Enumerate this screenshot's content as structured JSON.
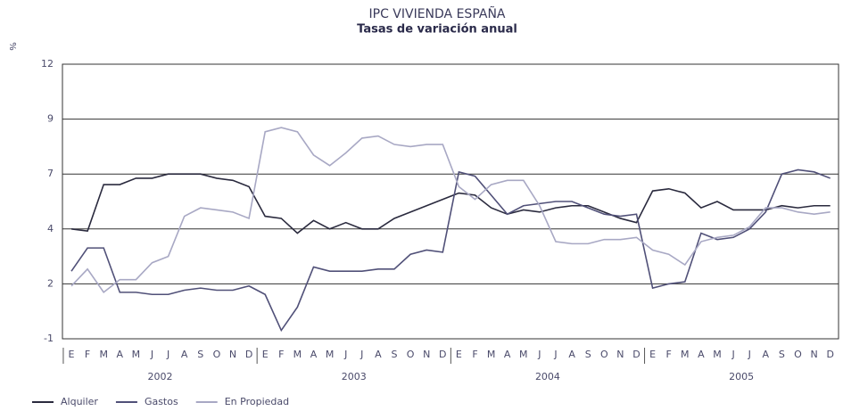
{
  "chart_data": {
    "type": "line",
    "title": "IPC VIVIENDA ESPAÑA",
    "subtitle": "Tasas de variación anual",
    "y_label": "%",
    "categories": [
      "E",
      "F",
      "M",
      "A",
      "M",
      "J",
      "J",
      "A",
      "S",
      "O",
      "N",
      "D",
      "E",
      "F",
      "M",
      "A",
      "M",
      "J",
      "J",
      "A",
      "S",
      "O",
      "N",
      "D",
      "E",
      "F",
      "M",
      "A",
      "M",
      "J",
      "J",
      "A",
      "S",
      "O",
      "N",
      "D",
      "E",
      "F",
      "M",
      "A",
      "M",
      "J",
      "J",
      "A",
      "S",
      "O",
      "N",
      "D"
    ],
    "years": [
      "2002",
      "2003",
      "2004",
      "2005"
    ],
    "series": [
      {
        "name": "Alquiler",
        "color": "#2a2a3e",
        "values": [
          4.2,
          4.1,
          6.3,
          6.3,
          6.6,
          6.6,
          6.8,
          6.8,
          6.8,
          6.6,
          6.5,
          6.2,
          4.8,
          4.7,
          4.0,
          4.6,
          4.2,
          4.5,
          4.2,
          4.2,
          4.7,
          5.0,
          5.3,
          5.6,
          5.9,
          5.8,
          5.2,
          4.9,
          5.1,
          5.0,
          5.2,
          5.3,
          5.3,
          5.0,
          4.7,
          4.5,
          6.0,
          6.1,
          5.9,
          5.2,
          5.5,
          5.1,
          5.1,
          5.1,
          5.3,
          5.2,
          5.3,
          5.3
        ]
      },
      {
        "name": "Gastos",
        "color": "#505078",
        "values": [
          2.2,
          3.3,
          3.3,
          1.2,
          1.2,
          1.1,
          1.1,
          1.3,
          1.4,
          1.3,
          1.3,
          1.5,
          1.1,
          -0.6,
          0.5,
          2.4,
          2.2,
          2.2,
          2.2,
          2.3,
          2.3,
          3.0,
          3.2,
          3.1,
          6.9,
          6.7,
          5.8,
          4.9,
          5.3,
          5.4,
          5.5,
          5.5,
          5.2,
          4.9,
          4.8,
          4.9,
          1.4,
          1.6,
          1.7,
          4.0,
          3.7,
          3.8,
          4.2,
          5.0,
          6.8,
          7.0,
          6.9,
          6.6
        ]
      },
      {
        "name": "En Propiedad",
        "color": "#a8a8c4",
        "values": [
          1.5,
          2.3,
          1.2,
          1.8,
          1.8,
          2.6,
          2.9,
          4.8,
          5.2,
          5.1,
          5.0,
          4.7,
          8.8,
          9.0,
          8.8,
          7.7,
          7.2,
          7.8,
          8.5,
          8.6,
          8.2,
          8.1,
          8.2,
          8.2,
          6.2,
          5.6,
          6.3,
          6.5,
          6.5,
          5.3,
          3.6,
          3.5,
          3.5,
          3.7,
          3.7,
          3.8,
          3.2,
          3.0,
          2.5,
          3.6,
          3.8,
          3.9,
          4.3,
          5.2,
          5.2,
          5.0,
          4.9,
          5.0
        ]
      }
    ],
    "ylim": [
      -1,
      12
    ],
    "yticks": [
      -1,
      {
        "value": 1.6,
        "label": "2"
      },
      {
        "value": 4.2,
        "label": "4"
      },
      {
        "value": 6.8,
        "label": "7"
      },
      {
        "value": 9.4,
        "label": "9"
      },
      12
    ],
    "grid": true
  }
}
